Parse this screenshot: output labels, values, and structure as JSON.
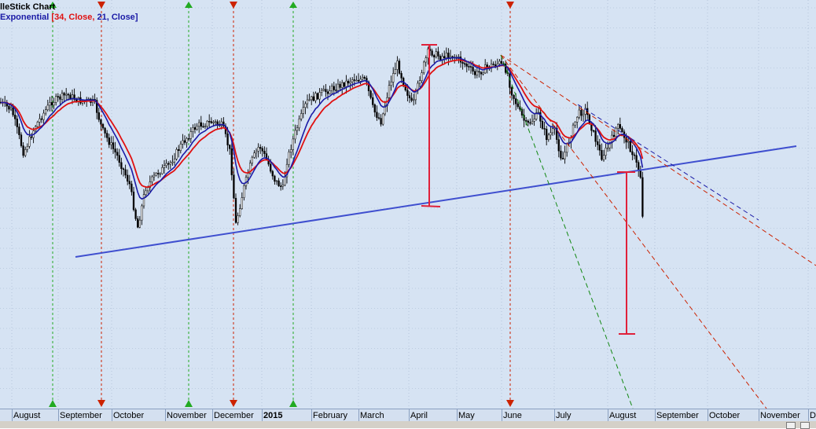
{
  "header": {
    "title": "lleStick Chart",
    "indicator_name": "Exponential",
    "indicator_open": " [",
    "param_red": "34, Close, ",
    "param_blue": "21, Close",
    "indicator_close": "]"
  },
  "colors": {
    "background": "#d6e3f3",
    "grid": "#9fb3cc",
    "ema34": "#e01010",
    "ema21": "#1a1aa6",
    "trendline": "#3f4fcf",
    "measure": "#e0203a",
    "up_marker": "#22aa22",
    "down_marker": "#cc2200"
  },
  "axis": {
    "months": [
      "August",
      "September",
      "October",
      "November",
      "December",
      "2015",
      "February",
      "March",
      "April",
      "May",
      "June",
      "July",
      "August",
      "September",
      "October",
      "November",
      "D"
    ]
  },
  "chart_data": {
    "type": "candlestick",
    "title": "lleStick Chart",
    "series": [
      {
        "name": "Exponential 34, Close"
      },
      {
        "name": "Exponential 21, Close"
      }
    ],
    "signals": {
      "up": [
        "Aug 2014",
        "Nov 2014",
        "Jan 2015"
      ],
      "down": [
        "Sep 2014",
        "Dec 2014",
        "Jun 2015"
      ]
    },
    "grid": true
  }
}
